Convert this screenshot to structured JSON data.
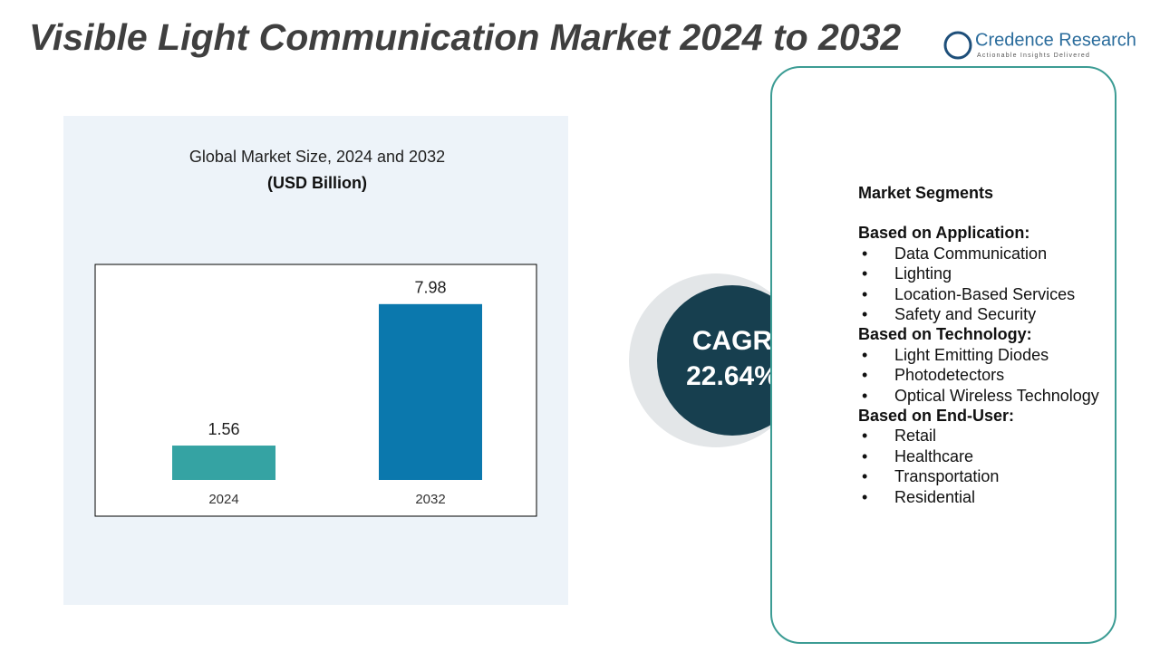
{
  "title": "Visible Light Communication Market 2024 to 2032",
  "logo": {
    "name": "Credence Research",
    "tagline": "Actionable Insights Delivered"
  },
  "chart_data": {
    "type": "bar",
    "title": "Global Market Size, 2024 and 2032",
    "subtitle": "(USD Billion)",
    "categories": [
      "2024",
      "2032"
    ],
    "values": [
      1.56,
      7.98
    ],
    "colors": [
      "#35a3a3",
      "#0b78ad"
    ],
    "ylim": [
      0,
      9
    ]
  },
  "cagr": {
    "label": "CAGR",
    "value": "22.64%"
  },
  "segments": {
    "title": "Market Segments",
    "groups": [
      {
        "heading": "Based on Application:",
        "items": [
          "Data Communication",
          "Lighting",
          "Location-Based Services",
          "Safety and Security"
        ]
      },
      {
        "heading": "Based on Technology:",
        "items": [
          "Light Emitting Diodes",
          "Photodetectors",
          "Optical Wireless Technology"
        ]
      },
      {
        "heading": "Based on End-User:",
        "items": [
          "Retail",
          "Healthcare",
          "Transportation",
          "Residential"
        ]
      }
    ]
  }
}
